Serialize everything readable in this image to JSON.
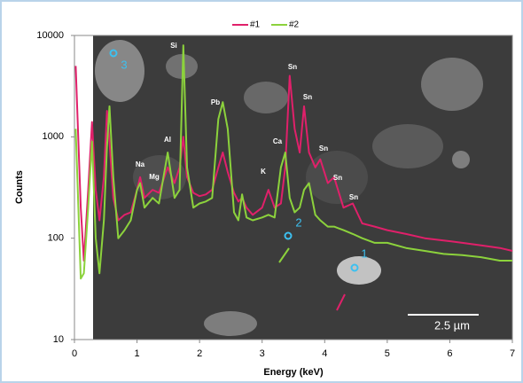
{
  "chart_data": {
    "type": "line",
    "x_label": "Energy (keV)",
    "y_label": "Counts",
    "x": [
      0.02,
      0.1,
      0.15,
      0.22,
      0.28,
      0.34,
      0.4,
      0.47,
      0.52,
      0.56,
      0.62,
      0.7,
      0.8,
      0.9,
      1.0,
      1.05,
      1.12,
      1.25,
      1.35,
      1.49,
      1.6,
      1.68,
      1.74,
      1.8,
      1.9,
      2.0,
      2.1,
      2.2,
      2.3,
      2.37,
      2.45,
      2.55,
      2.62,
      2.68,
      2.75,
      2.85,
      3.0,
      3.1,
      3.2,
      3.3,
      3.37,
      3.44,
      3.52,
      3.6,
      3.67,
      3.75,
      3.85,
      3.93,
      4.05,
      4.15,
      4.3,
      4.45,
      4.6,
      4.8,
      5.0,
      5.3,
      5.6,
      5.9,
      6.2,
      6.5,
      6.8,
      7.0
    ],
    "series": [
      {
        "name": "#1",
        "color": "#e0206a",
        "values": [
          5000,
          200,
          60,
          300,
          1400,
          300,
          150,
          400,
          1800,
          900,
          250,
          150,
          170,
          180,
          300,
          400,
          250,
          300,
          280,
          500,
          350,
          500,
          1000,
          400,
          280,
          260,
          270,
          300,
          500,
          700,
          450,
          280,
          230,
          250,
          200,
          170,
          200,
          300,
          200,
          220,
          500,
          4000,
          1200,
          700,
          2000,
          700,
          500,
          600,
          350,
          400,
          200,
          220,
          140,
          130,
          120,
          110,
          100,
          95,
          90,
          85,
          80,
          75
        ]
      },
      {
        "name": "#2",
        "color": "#8cd23c",
        "values": [
          1200,
          40,
          45,
          200,
          900,
          100,
          45,
          150,
          800,
          2000,
          400,
          100,
          120,
          150,
          300,
          350,
          200,
          250,
          220,
          700,
          250,
          300,
          8000,
          500,
          200,
          220,
          230,
          250,
          1500,
          2200,
          1200,
          180,
          150,
          270,
          160,
          150,
          160,
          170,
          160,
          500,
          700,
          250,
          180,
          200,
          300,
          350,
          170,
          150,
          130,
          130,
          120,
          110,
          100,
          90,
          90,
          80,
          75,
          70,
          68,
          65,
          60,
          60
        ]
      }
    ],
    "xlim": [
      0,
      7
    ],
    "xticks": [
      0,
      1,
      2,
      3,
      4,
      5,
      6,
      7
    ],
    "ylim": [
      10,
      10000
    ],
    "yticks": [
      10,
      100,
      1000,
      10000
    ],
    "log_y": true,
    "legend": "top",
    "annotations": [
      "Si",
      "Pb",
      "Al",
      "Na",
      "Mg",
      "Sn",
      "Sn",
      "Ca",
      "K",
      "Sn",
      "Sn",
      "Sn",
      "1",
      "2",
      "3",
      "2.5 µm"
    ]
  }
}
